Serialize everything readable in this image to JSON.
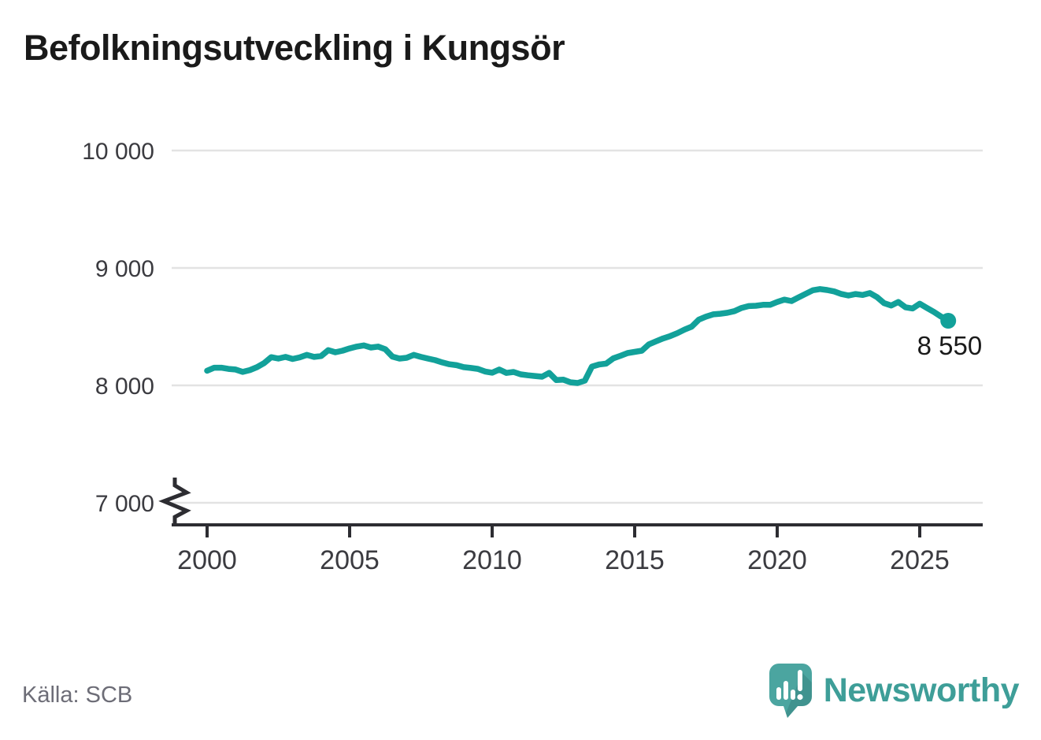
{
  "title": "Befolkningsutveckling i Kungsör",
  "source": {
    "label": "Källa: SCB"
  },
  "branding": {
    "name": "Newsworthy"
  },
  "colors": {
    "line": "#12a19a",
    "grid": "#e3e3e3",
    "axis": "#2d2d32",
    "title": "#1a1a1a",
    "tick_label": "#3b3b40",
    "end_label": "#1a1a1a",
    "source": "#6d6d77",
    "logo": "#4ba5a0",
    "logo_text": "#3e9e98",
    "background": "#ffffff"
  },
  "chart_data": {
    "type": "line",
    "title": "Befolkningsutveckling i Kungsör",
    "series_name": "Befolkning i Kungsör",
    "xlim": [
      2000,
      2026
    ],
    "ylim": [
      7000,
      10000
    ],
    "y_axis_break": true,
    "grid": "horizontal",
    "xticks": [
      2000,
      2005,
      2010,
      2015,
      2020,
      2025
    ],
    "yticks": [
      10000,
      9000,
      8000,
      7000
    ],
    "ytick_labels": [
      "10 000",
      "9 000",
      "8 000",
      "7 000"
    ],
    "last_value": 8550,
    "last_value_label": "8 550",
    "points": [
      [
        2000.0,
        8125
      ],
      [
        2000.25,
        8150
      ],
      [
        2000.5,
        8150
      ],
      [
        2000.75,
        8140
      ],
      [
        2001.0,
        8135
      ],
      [
        2001.25,
        8115
      ],
      [
        2001.5,
        8130
      ],
      [
        2001.75,
        8155
      ],
      [
        2002.0,
        8190
      ],
      [
        2002.25,
        8240
      ],
      [
        2002.5,
        8228
      ],
      [
        2002.75,
        8242
      ],
      [
        2003.0,
        8225
      ],
      [
        2003.25,
        8238
      ],
      [
        2003.5,
        8260
      ],
      [
        2003.75,
        8242
      ],
      [
        2004.0,
        8250
      ],
      [
        2004.25,
        8300
      ],
      [
        2004.5,
        8282
      ],
      [
        2004.75,
        8295
      ],
      [
        2005.0,
        8315
      ],
      [
        2005.25,
        8330
      ],
      [
        2005.5,
        8340
      ],
      [
        2005.75,
        8322
      ],
      [
        2006.0,
        8330
      ],
      [
        2006.25,
        8308
      ],
      [
        2006.5,
        8245
      ],
      [
        2006.75,
        8228
      ],
      [
        2007.0,
        8235
      ],
      [
        2007.25,
        8260
      ],
      [
        2007.5,
        8242
      ],
      [
        2007.75,
        8228
      ],
      [
        2008.0,
        8215
      ],
      [
        2008.25,
        8195
      ],
      [
        2008.5,
        8180
      ],
      [
        2008.75,
        8172
      ],
      [
        2009.0,
        8155
      ],
      [
        2009.25,
        8148
      ],
      [
        2009.5,
        8140
      ],
      [
        2009.75,
        8118
      ],
      [
        2010.0,
        8108
      ],
      [
        2010.25,
        8135
      ],
      [
        2010.5,
        8106
      ],
      [
        2010.75,
        8114
      ],
      [
        2011.0,
        8094
      ],
      [
        2011.25,
        8086
      ],
      [
        2011.5,
        8080
      ],
      [
        2011.75,
        8074
      ],
      [
        2012.0,
        8106
      ],
      [
        2012.25,
        8045
      ],
      [
        2012.5,
        8048
      ],
      [
        2012.75,
        8026
      ],
      [
        2013.0,
        8020
      ],
      [
        2013.25,
        8040
      ],
      [
        2013.5,
        8160
      ],
      [
        2013.75,
        8178
      ],
      [
        2014.0,
        8185
      ],
      [
        2014.25,
        8230
      ],
      [
        2014.5,
        8252
      ],
      [
        2014.75,
        8275
      ],
      [
        2015.0,
        8285
      ],
      [
        2015.25,
        8295
      ],
      [
        2015.5,
        8350
      ],
      [
        2015.75,
        8375
      ],
      [
        2016.0,
        8400
      ],
      [
        2016.25,
        8420
      ],
      [
        2016.5,
        8445
      ],
      [
        2016.75,
        8475
      ],
      [
        2017.0,
        8500
      ],
      [
        2017.25,
        8560
      ],
      [
        2017.5,
        8585
      ],
      [
        2017.75,
        8605
      ],
      [
        2018.0,
        8610
      ],
      [
        2018.25,
        8618
      ],
      [
        2018.5,
        8632
      ],
      [
        2018.75,
        8660
      ],
      [
        2019.0,
        8675
      ],
      [
        2019.25,
        8678
      ],
      [
        2019.5,
        8686
      ],
      [
        2019.75,
        8686
      ],
      [
        2020.0,
        8710
      ],
      [
        2020.25,
        8730
      ],
      [
        2020.5,
        8718
      ],
      [
        2020.75,
        8750
      ],
      [
        2021.0,
        8780
      ],
      [
        2021.25,
        8810
      ],
      [
        2021.5,
        8820
      ],
      [
        2021.75,
        8812
      ],
      [
        2022.0,
        8800
      ],
      [
        2022.25,
        8778
      ],
      [
        2022.5,
        8765
      ],
      [
        2022.75,
        8778
      ],
      [
        2023.0,
        8770
      ],
      [
        2023.25,
        8786
      ],
      [
        2023.5,
        8752
      ],
      [
        2023.75,
        8700
      ],
      [
        2024.0,
        8680
      ],
      [
        2024.25,
        8710
      ],
      [
        2024.5,
        8665
      ],
      [
        2024.75,
        8655
      ],
      [
        2025.0,
        8695
      ],
      [
        2025.25,
        8660
      ],
      [
        2025.5,
        8625
      ],
      [
        2025.75,
        8585
      ],
      [
        2026.0,
        8550
      ]
    ]
  }
}
